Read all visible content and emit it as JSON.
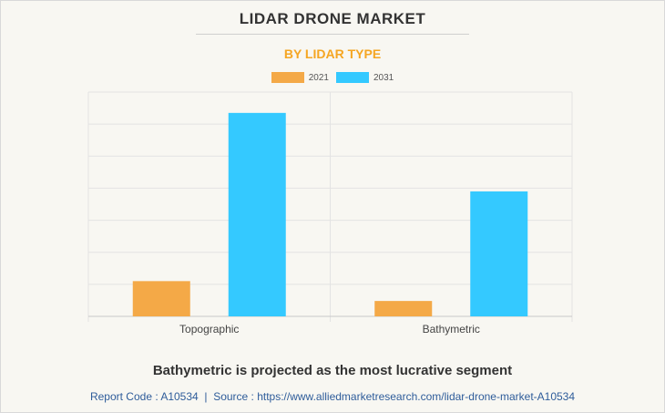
{
  "title": "LIDAR DRONE MARKET",
  "subtitle": "BY LIDAR TYPE",
  "headline": "Bathymetric is projected as the most lucrative segment",
  "source": {
    "report_code_label": "Report Code : A10534",
    "separator": "|",
    "source_label": "Source : https://www.alliedmarketresearch.com/lidar-drone-market-A10534"
  },
  "colors": {
    "subtitle": "#f5a623",
    "series_2021": "#f4a947",
    "series_2031": "#34c9ff",
    "grid": "#e3e3e3",
    "axis": "#c8c8c8",
    "tick_label": "#444444"
  },
  "chart_data": {
    "type": "bar",
    "title": "LIDAR DRONE MARKET",
    "subtitle": "BY LIDAR TYPE",
    "categories": [
      "Topographic",
      "Bathymetric"
    ],
    "series": [
      {
        "name": "2021",
        "color": "#f4a947",
        "values": [
          1.1,
          0.48
        ]
      },
      {
        "name": "2031",
        "color": "#34c9ff",
        "values": [
          6.35,
          3.9
        ]
      }
    ],
    "ylim": [
      0,
      7
    ],
    "y_gridlines": 7,
    "grid": true,
    "legend": "top-center",
    "y_tick_labels_shown": false
  }
}
